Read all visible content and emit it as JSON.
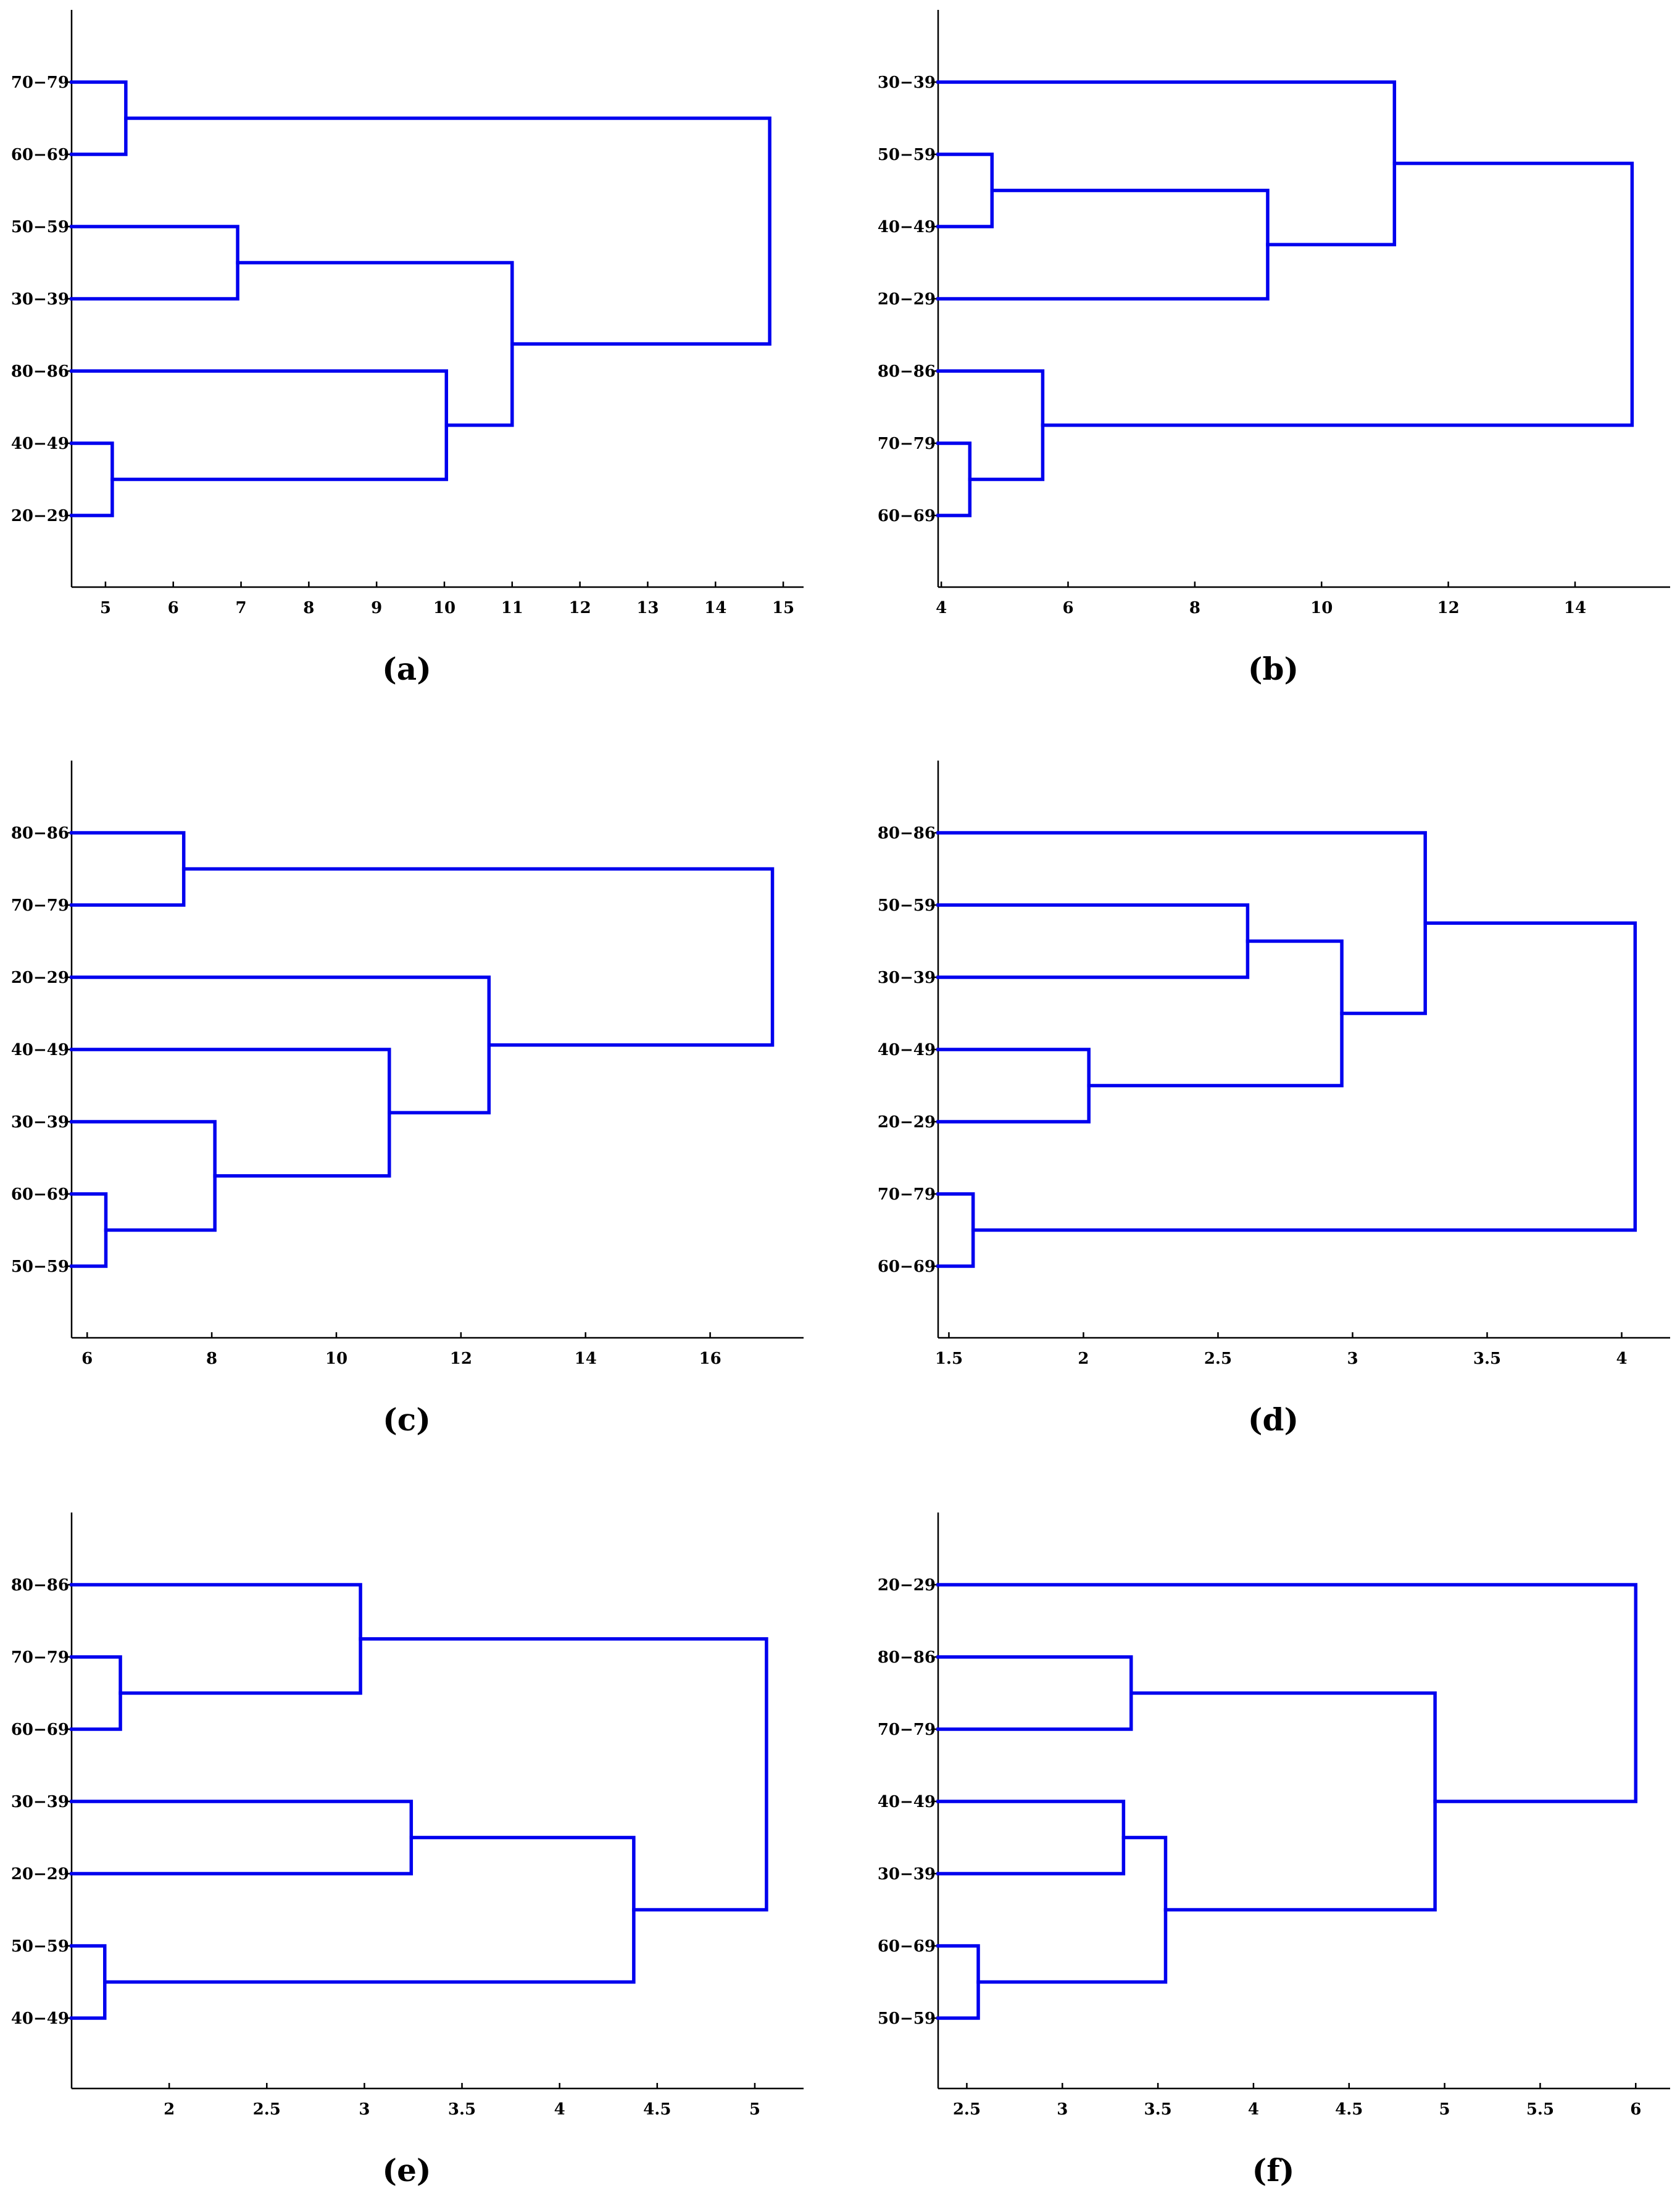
{
  "colors": {
    "link": "#0000ee",
    "axis": "#000000",
    "background": "#ffffff"
  },
  "chart_data": [
    {
      "type": "dendrogram",
      "panel_label": "(a)",
      "xlim": [
        4.5,
        15.3
      ],
      "xticks": [
        5,
        6,
        7,
        8,
        9,
        10,
        11,
        12,
        13,
        14,
        15
      ],
      "xtick_labels": [
        "5",
        "6",
        "7",
        "8",
        "9",
        "10",
        "11",
        "12",
        "13",
        "14",
        "15"
      ],
      "leaves": [
        "70−79",
        "60−69",
        "50−59",
        "30−39",
        "80−86",
        "40−49",
        "20−29"
      ],
      "merges": [
        {
          "children": [
            0,
            1
          ],
          "height": 5.3
        },
        {
          "children": [
            2,
            3
          ],
          "height": 6.95
        },
        {
          "children": [
            5,
            6
          ],
          "height": 5.1
        },
        {
          "children": [
            4,
            9
          ],
          "height": 10.03
        },
        {
          "children": [
            8,
            10
          ],
          "height": 11.0
        },
        {
          "children": [
            7,
            11
          ],
          "height": 14.8
        }
      ]
    },
    {
      "type": "dendrogram",
      "panel_label": "(b)",
      "xlim": [
        3.95,
        15.5
      ],
      "xticks": [
        4,
        6,
        8,
        10,
        12,
        14
      ],
      "xtick_labels": [
        "4",
        "6",
        "8",
        "10",
        "12",
        "14"
      ],
      "leaves": [
        "30−39",
        "50−59",
        "40−49",
        "20−29",
        "80−86",
        "70−79",
        "60−69"
      ],
      "merges": [
        {
          "children": [
            1,
            2
          ],
          "height": 4.8
        },
        {
          "children": [
            7,
            3
          ],
          "height": 9.15
        },
        {
          "children": [
            0,
            8
          ],
          "height": 11.15
        },
        {
          "children": [
            5,
            6
          ],
          "height": 4.45
        },
        {
          "children": [
            4,
            10
          ],
          "height": 5.6
        },
        {
          "children": [
            9,
            11
          ],
          "height": 14.9
        }
      ]
    },
    {
      "type": "dendrogram",
      "panel_label": "(c)",
      "xlim": [
        5.75,
        17.5
      ],
      "xticks": [
        6,
        8,
        10,
        12,
        14,
        16
      ],
      "xtick_labels": [
        "6",
        "8",
        "10",
        "12",
        "14",
        "16"
      ],
      "leaves": [
        "80−86",
        "70−79",
        "20−29",
        "40−49",
        "30−39",
        "60−69",
        "50−59"
      ],
      "merges": [
        {
          "children": [
            0,
            1
          ],
          "height": 7.55
        },
        {
          "children": [
            5,
            6
          ],
          "height": 6.3
        },
        {
          "children": [
            4,
            8
          ],
          "height": 8.05
        },
        {
          "children": [
            3,
            9
          ],
          "height": 10.85
        },
        {
          "children": [
            2,
            10
          ],
          "height": 12.45
        },
        {
          "children": [
            7,
            11
          ],
          "height": 17.0
        }
      ]
    },
    {
      "type": "dendrogram",
      "panel_label": "(d)",
      "xlim": [
        1.46,
        4.18
      ],
      "xticks": [
        1.5,
        2,
        2.5,
        3,
        3.5,
        4
      ],
      "xtick_labels": [
        "1.5",
        "2",
        "2.5",
        "3",
        "3.5",
        "4"
      ],
      "leaves": [
        "80−86",
        "50−59",
        "30−39",
        "40−49",
        "20−29",
        "70−79",
        "60−69"
      ],
      "merges": [
        {
          "children": [
            1,
            2
          ],
          "height": 2.61
        },
        {
          "children": [
            3,
            4
          ],
          "height": 2.02
        },
        {
          "children": [
            7,
            8
          ],
          "height": 2.96
        },
        {
          "children": [
            0,
            9
          ],
          "height": 3.27
        },
        {
          "children": [
            5,
            6
          ],
          "height": 1.59
        },
        {
          "children": [
            10,
            11
          ],
          "height": 4.05
        }
      ]
    },
    {
      "type": "dendrogram",
      "panel_label": "(e)",
      "xlim": [
        1.5,
        5.25
      ],
      "xticks": [
        2,
        2.5,
        3,
        3.5,
        4,
        4.5,
        5
      ],
      "xtick_labels": [
        "2",
        "2.5",
        "3",
        "3.5",
        "4",
        "4.5",
        "5"
      ],
      "leaves": [
        "80−86",
        "70−79",
        "60−69",
        "30−39",
        "20−29",
        "50−59",
        "40−49"
      ],
      "merges": [
        {
          "children": [
            1,
            2
          ],
          "height": 1.75
        },
        {
          "children": [
            0,
            7
          ],
          "height": 2.98
        },
        {
          "children": [
            3,
            4
          ],
          "height": 3.24
        },
        {
          "children": [
            5,
            6
          ],
          "height": 1.67
        },
        {
          "children": [
            9,
            10
          ],
          "height": 4.38
        },
        {
          "children": [
            8,
            11
          ],
          "height": 5.06
        }
      ]
    },
    {
      "type": "dendrogram",
      "panel_label": "(f)",
      "xlim": [
        2.35,
        6.18
      ],
      "xticks": [
        2.5,
        3,
        3.5,
        4,
        4.5,
        5,
        5.5,
        6
      ],
      "xtick_labels": [
        "2.5",
        "3",
        "3.5",
        "4",
        "4.5",
        "5",
        "5.5",
        "6"
      ],
      "leaves": [
        "20−29",
        "80−86",
        "70−79",
        "40−49",
        "30−39",
        "60−69",
        "50−59"
      ],
      "merges": [
        {
          "children": [
            1,
            2
          ],
          "height": 3.36
        },
        {
          "children": [
            3,
            4
          ],
          "height": 3.32
        },
        {
          "children": [
            5,
            6
          ],
          "height": 2.56
        },
        {
          "children": [
            8,
            9
          ],
          "height": 3.54
        },
        {
          "children": [
            7,
            10
          ],
          "height": 4.95
        },
        {
          "children": [
            0,
            11
          ],
          "height": 6.0
        }
      ]
    }
  ]
}
